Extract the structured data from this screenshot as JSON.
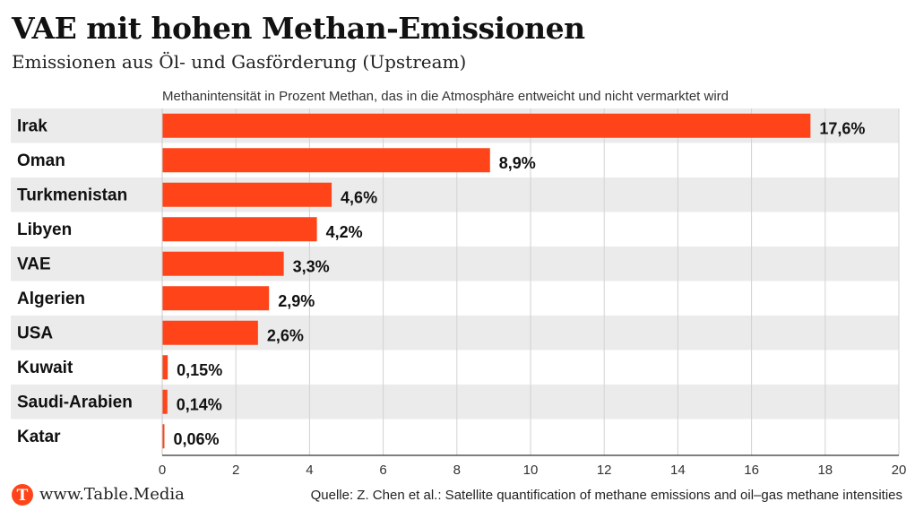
{
  "header": {
    "title": "VAE mit hohen Methan-Emissionen",
    "subtitle": "Emissionen aus Öl- und Gasförderung (Upstream)"
  },
  "chart_data": {
    "type": "bar",
    "orientation": "horizontal",
    "axis_note": "Methanintensität in Prozent Methan, das in die Atmosphäre entweicht und nicht vermarktet wird",
    "categories": [
      "Irak",
      "Oman",
      "Turkmenistan",
      "Libyen",
      "VAE",
      "Algerien",
      "USA",
      "Kuwait",
      "Saudi-Arabien",
      "Katar"
    ],
    "values": [
      17.6,
      8.9,
      4.6,
      4.2,
      3.3,
      2.9,
      2.6,
      0.15,
      0.14,
      0.06
    ],
    "value_labels": [
      "17,6%",
      "8,9%",
      "4,6%",
      "4,2%",
      "3,3%",
      "2,9%",
      "2,6%",
      "0,15%",
      "0,14%",
      "0,06%"
    ],
    "xlim": [
      0,
      20
    ],
    "xticks": [
      0,
      2,
      4,
      6,
      8,
      10,
      12,
      14,
      16,
      18,
      20
    ],
    "grid": true,
    "bar_color": "#ff4419",
    "band_color": "#ebebeb"
  },
  "footer": {
    "logo_letter": "T",
    "site": "www.Table.Media",
    "source": "Quelle: Z. Chen et al.: Satellite quantification of methane emissions and oil–gas methane intensities"
  }
}
